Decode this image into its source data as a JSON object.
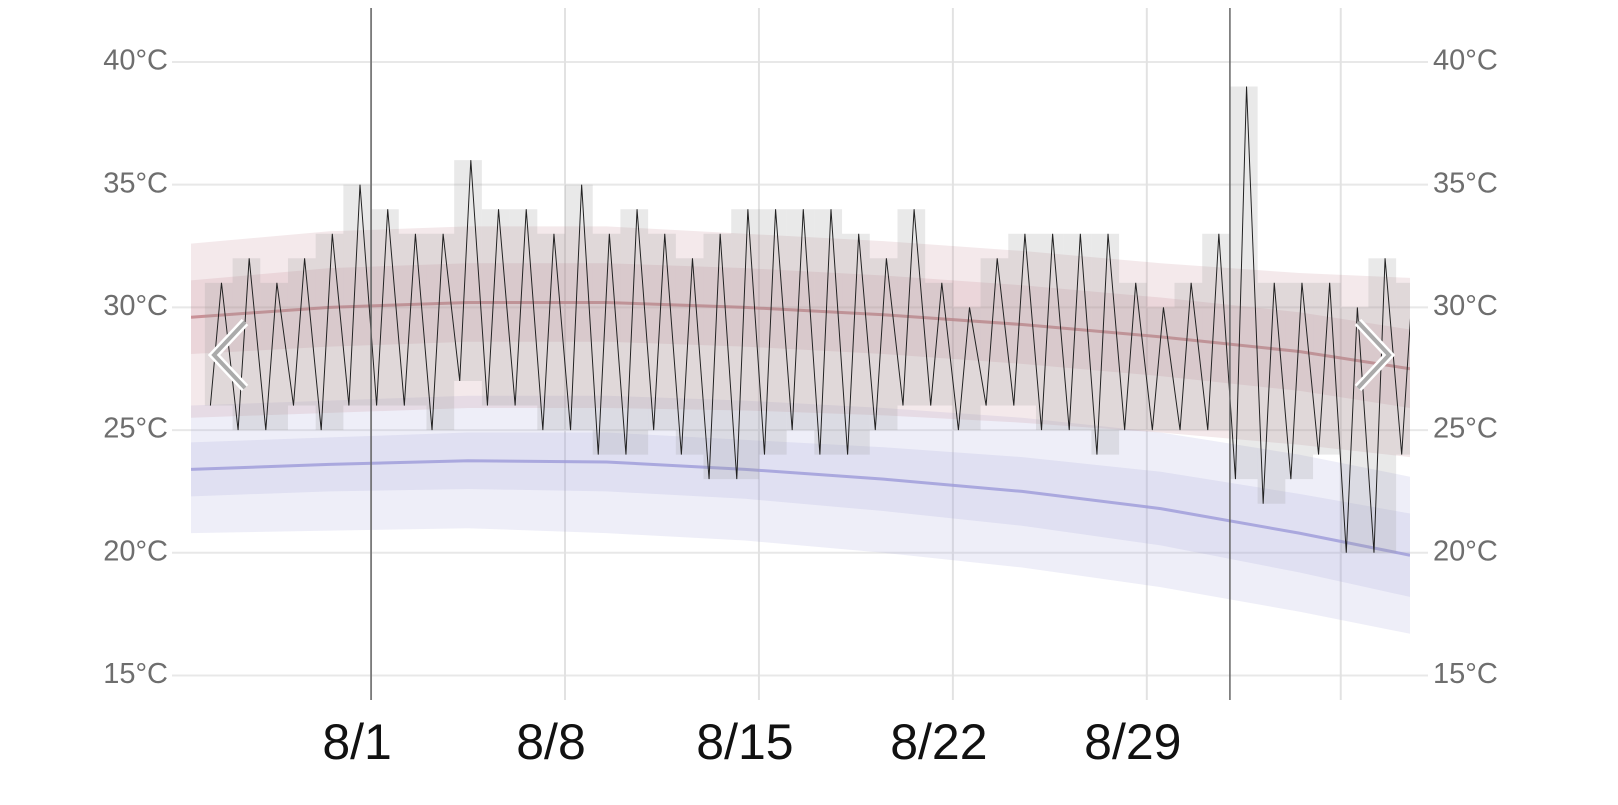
{
  "chart_data": {
    "type": "temperature",
    "xlim": [
      -6.5,
      37.5
    ],
    "xticks": [
      {
        "value": 0,
        "label": "8/1"
      },
      {
        "value": 7,
        "label": "8/8"
      },
      {
        "value": 14,
        "label": "8/15"
      },
      {
        "value": 21,
        "label": "8/22"
      },
      {
        "value": 28,
        "label": "8/29"
      },
      {
        "value": 35,
        "label": null
      }
    ],
    "markers": [
      0,
      31
    ],
    "ylim": [
      14,
      42.2
    ],
    "yticks": [
      {
        "value": 15,
        "label": "15°C"
      },
      {
        "value": 20,
        "label": "20°C"
      },
      {
        "value": 25,
        "label": "25°C"
      },
      {
        "value": 30,
        "label": "30°C"
      },
      {
        "value": 35,
        "label": "35°C"
      },
      {
        "value": 40,
        "label": "40°C"
      }
    ],
    "grid": true,
    "normals_x": [
      -6.5,
      -1.5,
      3.5,
      8.5,
      13.5,
      18.5,
      23.5,
      28.5,
      33.5,
      37.5
    ],
    "normal_high": {
      "color": "#c07f86",
      "mean": [
        29.6,
        30.0,
        30.2,
        30.2,
        30.0,
        29.7,
        29.3,
        28.8,
        28.2,
        27.5
      ],
      "inner": {
        "lower": [
          28.1,
          28.4,
          28.6,
          28.6,
          28.4,
          28.1,
          27.7,
          27.2,
          26.6,
          25.9
        ],
        "upper": [
          31.1,
          31.6,
          31.8,
          31.8,
          31.6,
          31.3,
          30.9,
          30.4,
          29.8,
          29.1
        ]
      },
      "outer": {
        "lower": [
          25.5,
          25.7,
          25.9,
          25.9,
          25.8,
          25.6,
          25.3,
          24.9,
          24.4,
          23.9
        ],
        "upper": [
          32.6,
          33.1,
          33.3,
          33.3,
          33.0,
          32.7,
          32.3,
          31.8,
          31.4,
          31.2
        ]
      }
    },
    "normal_low": {
      "color": "#9c9ad8",
      "mean": [
        23.4,
        23.6,
        23.75,
        23.7,
        23.4,
        23.0,
        22.5,
        21.8,
        20.8,
        19.9
      ],
      "inner": {
        "lower": [
          22.3,
          22.5,
          22.6,
          22.5,
          22.2,
          21.7,
          21.1,
          20.3,
          19.2,
          18.2
        ],
        "upper": [
          24.5,
          24.7,
          24.9,
          24.9,
          24.6,
          24.3,
          23.9,
          23.3,
          22.4,
          21.6
        ]
      },
      "outer": {
        "lower": [
          20.8,
          20.9,
          21.0,
          20.8,
          20.5,
          20.0,
          19.4,
          18.6,
          17.6,
          16.7
        ],
        "upper": [
          26.0,
          26.2,
          26.4,
          26.4,
          26.2,
          25.9,
          25.5,
          24.9,
          24.0,
          23.1
        ]
      }
    },
    "days": [
      -6,
      -5,
      -4,
      -3,
      -2,
      -1,
      0,
      1,
      2,
      3,
      4,
      5,
      6,
      7,
      8,
      9,
      10,
      11,
      12,
      13,
      14,
      15,
      16,
      17,
      18,
      19,
      20,
      21,
      22,
      23,
      24,
      25,
      26,
      27,
      28,
      29,
      30,
      31,
      32,
      33,
      34,
      35,
      36,
      37
    ],
    "highs": [
      31,
      32,
      31,
      32,
      33,
      35,
      34,
      33,
      33,
      36,
      34,
      34,
      33,
      35,
      33,
      34,
      33,
      32,
      33,
      34,
      34,
      34,
      34,
      33,
      32,
      34,
      31,
      30,
      32,
      33,
      33,
      33,
      33,
      31,
      30,
      31,
      33,
      39,
      31,
      31,
      31,
      30,
      32,
      31
    ],
    "lows": [
      26,
      25,
      25,
      26,
      25,
      26,
      26,
      26,
      25,
      27,
      26,
      26,
      25,
      25,
      24,
      24,
      25,
      24,
      23,
      23,
      24,
      25,
      24,
      24,
      25,
      26,
      26,
      25,
      26,
      26,
      25,
      25,
      24,
      25,
      25,
      25,
      25,
      23,
      22,
      23,
      24,
      20,
      20,
      24
    ],
    "trace_color": "#222222"
  }
}
